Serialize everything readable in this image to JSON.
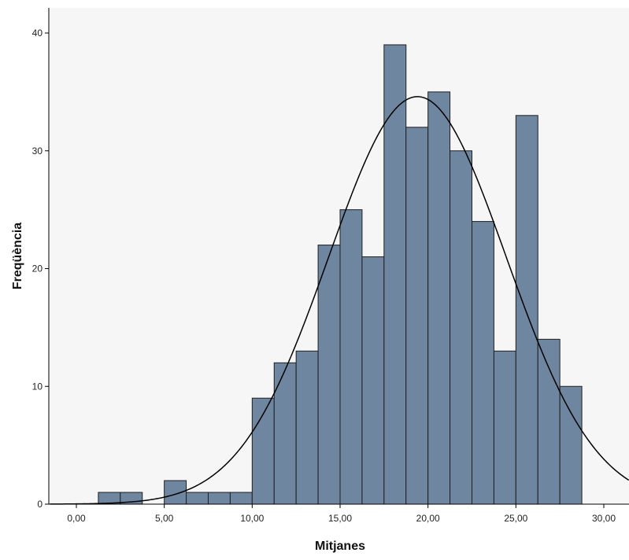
{
  "chart_data": {
    "type": "bar",
    "subtype": "histogram",
    "title": "",
    "xlabel": "Mitjanes",
    "ylabel": "Freqüència",
    "xlim": [
      -1.5,
      31.5
    ],
    "ylim": [
      0,
      42
    ],
    "grid": false,
    "legend": "none",
    "x_ticks": [
      {
        "value": 0,
        "label": "0,00"
      },
      {
        "value": 5,
        "label": "5,00"
      },
      {
        "value": 10,
        "label": "10,00"
      },
      {
        "value": 15,
        "label": "15,00"
      },
      {
        "value": 20,
        "label": "20,00"
      },
      {
        "value": 25,
        "label": "25,00"
      },
      {
        "value": 30,
        "label": "30,00"
      }
    ],
    "y_ticks": [
      {
        "value": 0,
        "label": "0"
      },
      {
        "value": 10,
        "label": "10"
      },
      {
        "value": 20,
        "label": "20"
      },
      {
        "value": 30,
        "label": "30"
      },
      {
        "value": 40,
        "label": "40"
      }
    ],
    "bin_edges": [
      1.25,
      2.5,
      3.75,
      5.0,
      6.25,
      7.5,
      8.75,
      10.0,
      11.25,
      12.5,
      13.75,
      15.0,
      16.25,
      17.5,
      18.75,
      20.0,
      21.25,
      22.5,
      23.75,
      25.0,
      26.25,
      27.5,
      28.75
    ],
    "values": [
      1,
      1,
      0,
      2,
      1,
      1,
      1,
      9,
      12,
      13,
      22,
      25,
      21,
      39,
      32,
      35,
      30,
      24,
      13,
      33,
      14,
      10
    ],
    "normal_curve": {
      "mean": 19.4,
      "std_dev": 5.05,
      "peak": 34.6
    },
    "colors": {
      "bar_fill": "#6e86a0",
      "bar_stroke": "#1f1f1f",
      "plot_background": "#f6f6f6",
      "curve": "#000000"
    }
  }
}
